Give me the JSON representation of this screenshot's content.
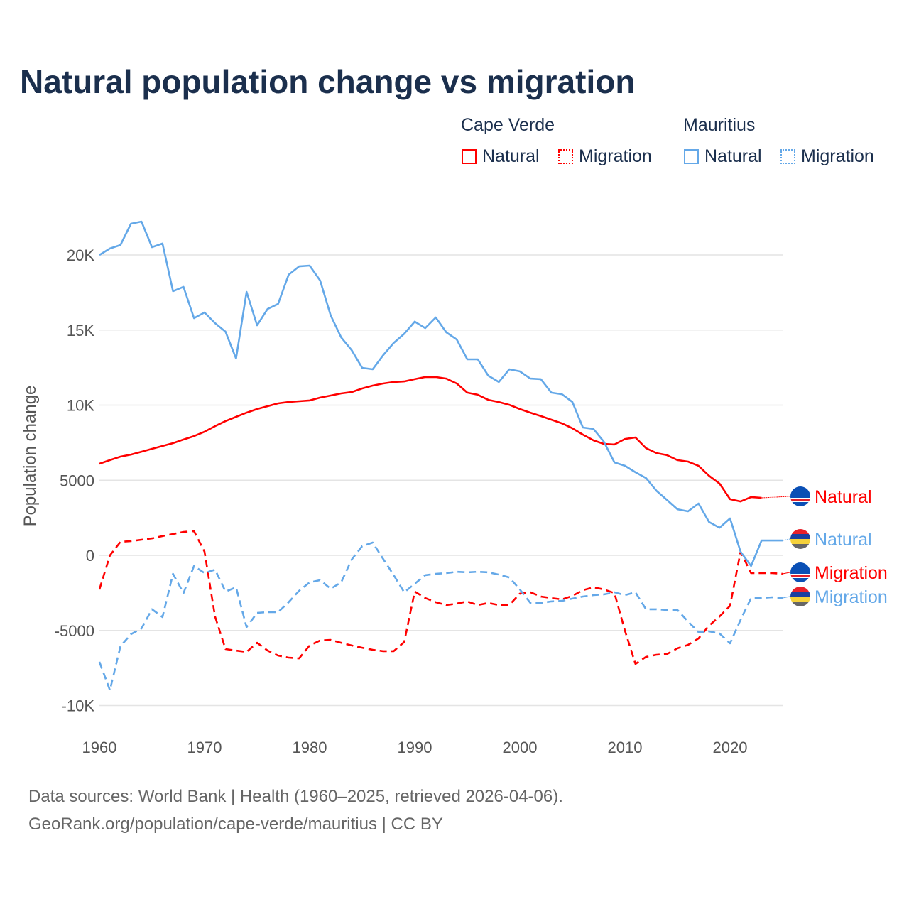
{
  "title": "Natural population change vs migration",
  "legend": {
    "groups": [
      {
        "name": "Cape Verde",
        "items": [
          {
            "label": "Natural",
            "style": "solid",
            "color": "#ff0000"
          },
          {
            "label": "Migration",
            "style": "dotted",
            "color": "#ff0000"
          }
        ]
      },
      {
        "name": "Mauritius",
        "items": [
          {
            "label": "Natural",
            "style": "solid",
            "color": "#64a8e8"
          },
          {
            "label": "Migration",
            "style": "dotted",
            "color": "#64a8e8"
          }
        ]
      }
    ]
  },
  "footer": {
    "line1": "Data sources: World Bank | Health (1960–2025, retrieved 2026-04-06).",
    "line2": "GeoRank.org/population/cape-verde/mauritius | CC BY"
  },
  "chart_data": {
    "type": "line",
    "title": "Natural population change vs migration",
    "xlabel": "",
    "ylabel": "Population change",
    "xlim": [
      1960,
      2025
    ],
    "ylim": [
      -10000,
      22500
    ],
    "x_ticks": [
      1960,
      1970,
      1980,
      1990,
      2000,
      2010,
      2020
    ],
    "x_tick_labels": [
      "1960",
      "1970",
      "1980",
      "1990",
      "2000",
      "2010",
      "2020"
    ],
    "y_ticks": [
      -10000,
      -5000,
      0,
      5000,
      10000,
      15000,
      20000
    ],
    "y_tick_labels": [
      "-10K",
      "-5000",
      "0",
      "5000",
      "10K",
      "15K",
      "20K"
    ],
    "grid": true,
    "series": [
      {
        "name": "Cape Verde Natural",
        "end_label": "Natural",
        "color": "#ff0000",
        "dash": false,
        "start": 1960,
        "values": [
          6100,
          6340,
          6570,
          6710,
          6900,
          7090,
          7280,
          7470,
          7710,
          7940,
          8230,
          8600,
          8940,
          9220,
          9500,
          9740,
          9930,
          10120,
          10210,
          10260,
          10310,
          10500,
          10640,
          10780,
          10870,
          11110,
          11300,
          11440,
          11540,
          11580,
          11730,
          11870,
          11870,
          11770,
          11440,
          10830,
          10690,
          10350,
          10210,
          10020,
          9740,
          9500,
          9270,
          9030,
          8790,
          8460,
          8040,
          7660,
          7420,
          7380,
          7750,
          7850,
          7140,
          6810,
          6670,
          6340,
          6240,
          5960,
          5300,
          4780,
          3740,
          3590,
          3880,
          3830
        ]
      },
      {
        "name": "Cape Verde Migration",
        "end_label": "Migration",
        "color": "#ff0000",
        "dash": true,
        "start": 1960,
        "values": [
          -2270,
          0,
          900,
          950,
          1040,
          1130,
          1280,
          1420,
          1560,
          1610,
          240,
          -4070,
          -6240,
          -6340,
          -6430,
          -5820,
          -6340,
          -6670,
          -6810,
          -6860,
          -6000,
          -5670,
          -5630,
          -5820,
          -6000,
          -6150,
          -6290,
          -6380,
          -6380,
          -5770,
          -2410,
          -2840,
          -3120,
          -3310,
          -3210,
          -3070,
          -3310,
          -3170,
          -3310,
          -3310,
          -2550,
          -2460,
          -2740,
          -2840,
          -2930,
          -2700,
          -2320,
          -2130,
          -2270,
          -2510,
          -5010,
          -7230,
          -6760,
          -6620,
          -6570,
          -6190,
          -5960,
          -5530,
          -4680,
          -4070,
          -3360,
          240,
          -1180,
          -1180,
          -1180,
          -1230
        ]
      },
      {
        "name": "Mauritius Natural",
        "end_label": "Natural",
        "color": "#64a8e8",
        "dash": false,
        "start": 1960,
        "values": [
          20000,
          20430,
          20660,
          22080,
          22220,
          20520,
          20760,
          17590,
          17870,
          15790,
          16170,
          15460,
          14890,
          13100,
          17540,
          15320,
          16400,
          16740,
          18680,
          19240,
          19290,
          18300,
          15980,
          14510,
          13660,
          12480,
          12390,
          13330,
          14140,
          14750,
          15560,
          15130,
          15840,
          14850,
          14370,
          13050,
          13050,
          11960,
          11540,
          12390,
          12250,
          11770,
          11730,
          10830,
          10730,
          10210,
          8510,
          8420,
          7560,
          6190,
          5960,
          5530,
          5150,
          4300,
          3690,
          3070,
          2930,
          3450,
          2220,
          1840,
          2460,
          240,
          -710,
          990,
          990,
          990
        ]
      },
      {
        "name": "Mauritius Migration",
        "end_label": "Migration",
        "color": "#64a8e8",
        "dash": true,
        "start": 1960,
        "values": [
          -7090,
          -8980,
          -6050,
          -5250,
          -4870,
          -3590,
          -4110,
          -1230,
          -2510,
          -710,
          -1180,
          -950,
          -2410,
          -2130,
          -4780,
          -3830,
          -3780,
          -3780,
          -3120,
          -2360,
          -1800,
          -1650,
          -2220,
          -1800,
          -280,
          610,
          850,
          -240,
          -1320,
          -2460,
          -1890,
          -1320,
          -1230,
          -1180,
          -1090,
          -1130,
          -1090,
          -1130,
          -1280,
          -1470,
          -2270,
          -3170,
          -3170,
          -3070,
          -3030,
          -2880,
          -2740,
          -2650,
          -2600,
          -2460,
          -2650,
          -2460,
          -3590,
          -3590,
          -3640,
          -3640,
          -4400,
          -5110,
          -5060,
          -5200,
          -5860,
          -4300,
          -2840,
          -2840,
          -2790,
          -2840
        ]
      }
    ]
  }
}
